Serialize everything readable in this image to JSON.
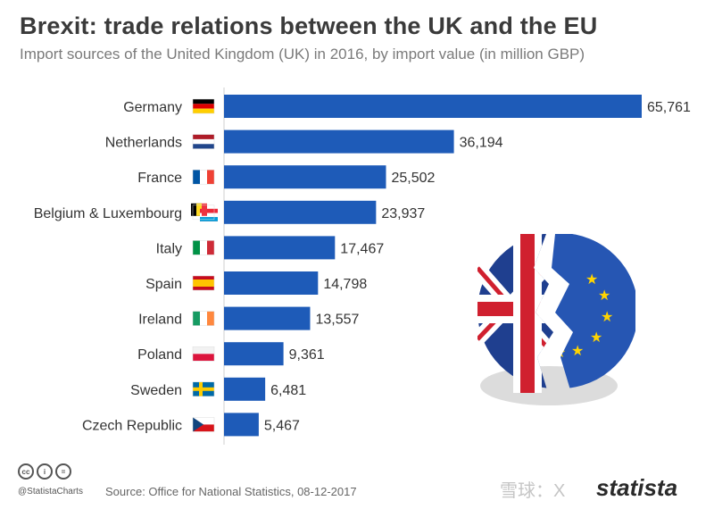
{
  "header": {
    "title": "Brexit: trade relations between the UK and the EU",
    "subtitle": "Import sources of the United Kingdom (UK) in 2016, by import value (in million GBP)"
  },
  "footer": {
    "handle": "@StatistaCharts",
    "source": "Source: Office for National Statistics, 08-12-2017",
    "brand": "statista",
    "watermark": "雪球：X",
    "cc_icons": [
      "cc-icon",
      "attribution-icon",
      "no-derivatives-icon"
    ]
  },
  "chart_data": {
    "type": "bar",
    "orientation": "horizontal",
    "categories": [
      "Germany",
      "Netherlands",
      "France",
      "Belgium & Luxembourg",
      "Italy",
      "Spain",
      "Ireland",
      "Poland",
      "Sweden",
      "Czech Republic"
    ],
    "values": [
      65761,
      36194,
      25502,
      23937,
      17467,
      14798,
      13557,
      9361,
      6481,
      5467
    ],
    "value_labels": [
      "65,761",
      "36,194",
      "25,502",
      "23,937",
      "17,467",
      "14,798",
      "13,557",
      "9,361",
      "6,481",
      "5,467"
    ],
    "flags": [
      "germany-flag-icon",
      "netherlands-flag-icon",
      "france-flag-icon",
      "belgium-luxembourg-flag-icon",
      "italy-flag-icon",
      "spain-flag-icon",
      "ireland-flag-icon",
      "poland-flag-icon",
      "sweden-flag-icon",
      "czech-flag-icon"
    ],
    "bar_color": "#1e5bb8",
    "grid": false,
    "legend": "none"
  }
}
